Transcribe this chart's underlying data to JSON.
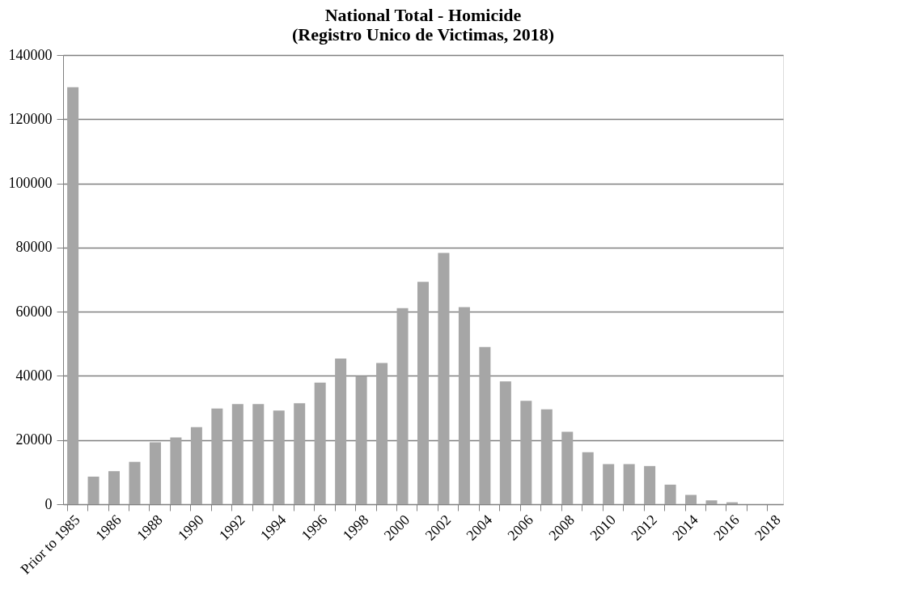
{
  "chart_data": {
    "type": "bar",
    "title": "National Total - Homicide\n(Registro Unico de Victimas, 2018)",
    "categories": [
      "Prior to 1985",
      null,
      "1986",
      null,
      "1988",
      null,
      "1990",
      null,
      "1992",
      null,
      "1994",
      null,
      "1996",
      null,
      "1998",
      null,
      "2000",
      null,
      "2002",
      null,
      "2004",
      null,
      "2006",
      null,
      "2008",
      null,
      "2010",
      null,
      "2012",
      null,
      "2014",
      null,
      "2016",
      null,
      "2018"
    ],
    "values": [
      130000,
      8600,
      10300,
      13200,
      19300,
      20800,
      24000,
      29800,
      31200,
      31200,
      29200,
      31500,
      37900,
      45400,
      39900,
      44000,
      61100,
      69300,
      78300,
      61400,
      49000,
      38300,
      32200,
      29600,
      22600,
      16200,
      12500,
      12500,
      11900,
      6100,
      2900,
      1200,
      600,
      null,
      null
    ],
    "color": "#a6a6a6",
    "ylim": [
      0,
      140000
    ],
    "yticks": [
      0,
      20000,
      40000,
      60000,
      80000,
      100000,
      120000,
      140000
    ],
    "grid": "y"
  }
}
